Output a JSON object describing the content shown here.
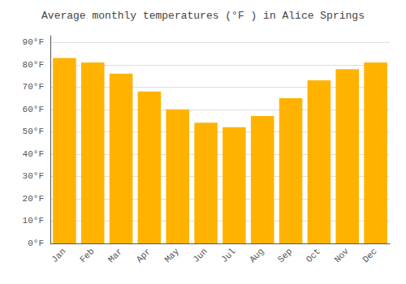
{
  "chart_data": {
    "type": "bar",
    "title": "Average monthly temperatures (°F ) in Alice Springs",
    "categories": [
      "Jan",
      "Feb",
      "Mar",
      "Apr",
      "May",
      "Jun",
      "Jul",
      "Aug",
      "Sep",
      "Oct",
      "Nov",
      "Dec"
    ],
    "values": [
      83,
      81,
      76,
      68,
      60,
      54,
      52,
      57,
      65,
      73,
      78,
      81
    ],
    "color": "#FFB300",
    "ylim": [
      0,
      93
    ],
    "yticks": [
      {
        "value": 0,
        "label": "0°F"
      },
      {
        "value": 10,
        "label": "10°F"
      },
      {
        "value": 20,
        "label": "20°F"
      },
      {
        "value": 30,
        "label": "30°F"
      },
      {
        "value": 40,
        "label": "40°F"
      },
      {
        "value": 50,
        "label": "50°F"
      },
      {
        "value": 60,
        "label": "60°F"
      },
      {
        "value": 70,
        "label": "70°F"
      },
      {
        "value": 80,
        "label": "80°F"
      },
      {
        "value": 90,
        "label": "90°F"
      }
    ],
    "grid": true
  }
}
